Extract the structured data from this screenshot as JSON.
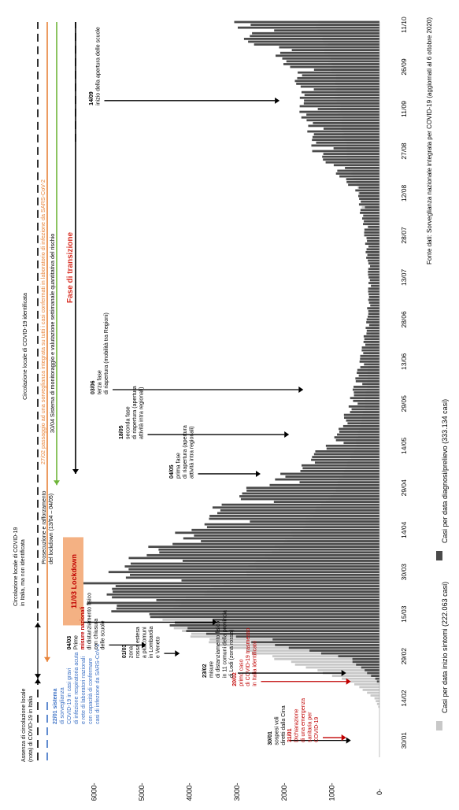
{
  "chart_data": {
    "type": "bar",
    "orientation": "rotated-90",
    "stacked": true,
    "ylim": [
      0,
      6100
    ],
    "yticks": [
      0,
      1000,
      2000,
      3000,
      4000,
      5000,
      6000
    ],
    "ytick_labels": [
      "0-",
      "1000-",
      "2000-",
      "3000-",
      "4000-",
      "5000-",
      "6000-"
    ],
    "x_start": "2020-01-24",
    "x_end": "2020-10-12",
    "xticks": [
      {
        "date": "2020-01-30",
        "label": "30/01"
      },
      {
        "date": "2020-02-14",
        "label": "14/02"
      },
      {
        "date": "2020-02-29",
        "label": "29/02"
      },
      {
        "date": "2020-03-15",
        "label": "15/03"
      },
      {
        "date": "2020-03-30",
        "label": "30/03"
      },
      {
        "date": "2020-04-14",
        "label": "14/04"
      },
      {
        "date": "2020-04-29",
        "label": "29/04"
      },
      {
        "date": "2020-05-14",
        "label": "14/05"
      },
      {
        "date": "2020-05-29",
        "label": "29/05"
      },
      {
        "date": "2020-06-13",
        "label": "13/06"
      },
      {
        "date": "2020-06-28",
        "label": "28/06"
      },
      {
        "date": "2020-07-13",
        "label": "13/07"
      },
      {
        "date": "2020-07-28",
        "label": "28/07"
      },
      {
        "date": "2020-08-12",
        "label": "12/08"
      },
      {
        "date": "2020-08-27",
        "label": "27/08"
      },
      {
        "date": "2020-09-11",
        "label": "11/09"
      },
      {
        "date": "2020-09-26",
        "label": "26/09"
      },
      {
        "date": "2020-10-11",
        "label": "11/10"
      }
    ],
    "legend_position": "bottom",
    "legend": [
      {
        "label": "Casi per data inizio sintomi (222.063 casi)",
        "color": "#c8c8c8"
      },
      {
        "label": "Casi per data diagnosi/prelievo (333.134 casi)",
        "color": "#4a4a4a"
      }
    ],
    "series": [
      {
        "name": "Casi per data diagnosi/prelievo (333.134 casi)",
        "color": "#4a4a4a",
        "anchors": [
          {
            "date": "2020-01-24",
            "value": 0
          },
          {
            "date": "2020-02-19",
            "value": 0
          },
          {
            "date": "2020-02-24",
            "value": 300
          },
          {
            "date": "2020-02-29",
            "value": 800
          },
          {
            "date": "2020-03-05",
            "value": 2500
          },
          {
            "date": "2020-03-10",
            "value": 4200
          },
          {
            "date": "2020-03-15",
            "value": 5200
          },
          {
            "date": "2020-03-20",
            "value": 5900
          },
          {
            "date": "2020-03-25",
            "value": 6000
          },
          {
            "date": "2020-03-30",
            "value": 5600
          },
          {
            "date": "2020-04-05",
            "value": 5200
          },
          {
            "date": "2020-04-10",
            "value": 4500
          },
          {
            "date": "2020-04-14",
            "value": 4000
          },
          {
            "date": "2020-04-20",
            "value": 3500
          },
          {
            "date": "2020-04-25",
            "value": 2900
          },
          {
            "date": "2020-04-29",
            "value": 2600
          },
          {
            "date": "2020-05-05",
            "value": 1800
          },
          {
            "date": "2020-05-10",
            "value": 1400
          },
          {
            "date": "2020-05-14",
            "value": 1100
          },
          {
            "date": "2020-05-20",
            "value": 800
          },
          {
            "date": "2020-05-29",
            "value": 600
          },
          {
            "date": "2020-06-13",
            "value": 400
          },
          {
            "date": "2020-06-28",
            "value": 250
          },
          {
            "date": "2020-07-13",
            "value": 220
          },
          {
            "date": "2020-07-28",
            "value": 300
          },
          {
            "date": "2020-08-12",
            "value": 450
          },
          {
            "date": "2020-08-20",
            "value": 900
          },
          {
            "date": "2020-08-27",
            "value": 1300
          },
          {
            "date": "2020-09-05",
            "value": 1500
          },
          {
            "date": "2020-09-11",
            "value": 1600
          },
          {
            "date": "2020-09-20",
            "value": 1700
          },
          {
            "date": "2020-09-26",
            "value": 1800
          },
          {
            "date": "2020-10-03",
            "value": 2300
          },
          {
            "date": "2020-10-07",
            "value": 2800
          },
          {
            "date": "2020-10-12",
            "value": 3000
          }
        ]
      },
      {
        "name": "Casi per data inizio sintomi (222.063 casi)",
        "color": "#c8c8c8",
        "anchors": [
          {
            "date": "2020-01-24",
            "value": 0
          },
          {
            "date": "2020-02-10",
            "value": 0
          },
          {
            "date": "2020-02-14",
            "value": 100
          },
          {
            "date": "2020-02-20",
            "value": 600
          },
          {
            "date": "2020-02-25",
            "value": 1500
          },
          {
            "date": "2020-02-29",
            "value": 2300
          },
          {
            "date": "2020-03-05",
            "value": 3500
          },
          {
            "date": "2020-03-10",
            "value": 4300
          },
          {
            "date": "2020-03-15",
            "value": 4600
          },
          {
            "date": "2020-03-20",
            "value": 4100
          },
          {
            "date": "2020-03-25",
            "value": 3400
          },
          {
            "date": "2020-03-30",
            "value": 2800
          },
          {
            "date": "2020-04-05",
            "value": 2300
          },
          {
            "date": "2020-04-14",
            "value": 1700
          },
          {
            "date": "2020-04-29",
            "value": 900
          },
          {
            "date": "2020-05-14",
            "value": 500
          },
          {
            "date": "2020-05-29",
            "value": 300
          },
          {
            "date": "2020-06-28",
            "value": 150
          },
          {
            "date": "2020-07-28",
            "value": 180
          },
          {
            "date": "2020-08-27",
            "value": 700
          },
          {
            "date": "2020-09-26",
            "value": 1000
          },
          {
            "date": "2020-10-12",
            "value": 1300
          }
        ]
      }
    ],
    "annotations": [
      {
        "date": "2020-01-30",
        "color": "black",
        "arrow_to": 700,
        "label_lines": [
          {
            "text": "30/01",
            "weight": "bold"
          },
          {
            "text": " sospesi voli"
          },
          {
            "text": "diretti dalla Cina"
          }
        ]
      },
      {
        "date": "2020-01-31",
        "color": "red",
        "arrow_to": 800,
        "label_lines": [
          {
            "text": "31/01",
            "weight": "bold"
          },
          {
            "text": " Dichiarazione"
          },
          {
            "text": "di una emergenza"
          },
          {
            "text": "sanitaria per"
          },
          {
            "text": "COVID-19"
          }
        ]
      },
      {
        "date": "2020-02-20",
        "color": "red",
        "arrow_to": 700,
        "label_lines": [
          {
            "text": "20/02",
            "weight": "bold"
          },
          {
            "text": " primo caso"
          },
          {
            "text": "di COVID-19 trasmesso"
          },
          {
            "text": "in Italia identificato"
          }
        ]
      },
      {
        "date": "2020-02-23",
        "color": "black",
        "arrow_to": 800,
        "label_lines": [
          {
            "text": "23/02",
            "weight": "bold"
          },
          {
            "text": " misure"
          },
          {
            "text": "di distanziamento fisico"
          },
          {
            "text": "in 11 comuni della provincia"
          },
          {
            "text": "di Lodi (zona rossa)"
          }
        ]
      },
      {
        "date": "2020-03-01",
        "color": "black",
        "arrow_to": 4300,
        "label_lines": [
          {
            "text": "01/03",
            "weight": "bold"
          },
          {
            "text": " zona"
          },
          {
            "text": "rossa estesa"
          },
          {
            "text": "a più comuni"
          },
          {
            "text": "in Lombardia"
          },
          {
            "text": "e Veneto"
          }
        ]
      },
      {
        "date": "2020-03-04",
        "color": "black",
        "arrow_to": 5000,
        "label_lines": [
          {
            "text": "04/03",
            "weight": "bold"
          },
          {
            "text": " Prime"
          },
          {
            "text": "misure nazionali",
            "weight": "bold",
            "color": "red"
          },
          {
            "text": "di distanziamento fisico"
          },
          {
            "text": "con chiusura"
          },
          {
            "text": "delle scuole"
          }
        ]
      },
      {
        "date": "2020-05-04",
        "color": "black",
        "arrow_to": 2600,
        "label_lines": [
          {
            "text": "04/05",
            "weight": "bold"
          },
          {
            "text": " prima fase"
          },
          {
            "text": "di riapertura (apertura"
          },
          {
            "text": "attività intra regionali)"
          }
        ]
      },
      {
        "date": "2020-05-18",
        "color": "black",
        "arrow_to": 2000,
        "label_lines": [
          {
            "text": "18/05",
            "weight": "bold"
          },
          {
            "text": " seconda fase"
          },
          {
            "text": "di riapertura (apertura"
          },
          {
            "text": "attività intra regionali)"
          }
        ]
      },
      {
        "date": "2020-06-03",
        "color": "black",
        "arrow_to": 1700,
        "label_lines": [
          {
            "text": "03/06",
            "weight": "bold"
          },
          {
            "text": " terza fase"
          },
          {
            "text": "di riapertura (mobilità tra Regioni)"
          }
        ]
      },
      {
        "date": "2020-09-14",
        "color": "black",
        "arrow_to": 2200,
        "label_lines": [
          {
            "text": "14/09",
            "weight": "bold"
          },
          {
            "text": " inizio della apertura delle scuole"
          }
        ]
      }
    ],
    "lockdown": {
      "date": "2020-03-11",
      "label": "11/03 Lockdown"
    },
    "lockdown_note": {
      "date": "2020-04-13",
      "lines": [
        {
          "text": "Prosecuzione e rafforzamento"
        },
        {
          "text": "del lockdown (13/04 – 04/05)",
          "highlight": "lockdown"
        }
      ]
    },
    "phase_lines": [
      {
        "name": "absence",
        "color": "#000000",
        "dash": "10 6",
        "stop": "2020-02-21",
        "label_lines": [
          "Assenza di circolazione locale",
          "(nota) di COVID-19 in Italia"
        ]
      },
      {
        "name": "blue-system",
        "color": "#3a6fc4",
        "dash": "10 6",
        "stop": "2020-02-14",
        "label_lines": [
          "22/01 sistema",
          "di sorveglianza",
          "COVID-19 in casi gravi",
          "di infezione respiratoria acuta",
          "e rete di laboratori nazionali",
          "con capacità di confermare",
          "casi di infezione da SARS-CoV-2"
        ]
      },
      {
        "name": "circulation",
        "color": "#000000",
        "dash": "none",
        "start": "2020-02-21",
        "stop": "2020-03-12",
        "label_lines": [
          "Circolazione locale di COVID-19",
          "in Italia, ma non identificata"
        ]
      },
      {
        "name": "identified",
        "color": "#000000",
        "dash": "10 6",
        "start": "2020-03-12",
        "label": "Circolazione locale di COVID-19 identificata"
      },
      {
        "name": "orange",
        "color": "#e8843a",
        "dash": "none",
        "date": "2020-02-27",
        "label": "27/02 passaggio ad una sorveglianza integrata su tutti i casi confermati in laboratorio di infezione da SARS-CoV-2"
      },
      {
        "name": "green",
        "color": "#6fb63a",
        "dash": "none",
        "date": "2020-04-30",
        "label": "30/04 Sistema di monitoraggio e valutazione settimanale quantitativa del rischio"
      },
      {
        "name": "transition",
        "color": "#000000",
        "dash": "none",
        "date": "2020-05-04",
        "label": "Fase di transizione"
      }
    ],
    "source": "Fonte dati: Sorveglianza nazionale integrata per COVID-19 (aggiornati al 6 ottobre 2020)"
  }
}
